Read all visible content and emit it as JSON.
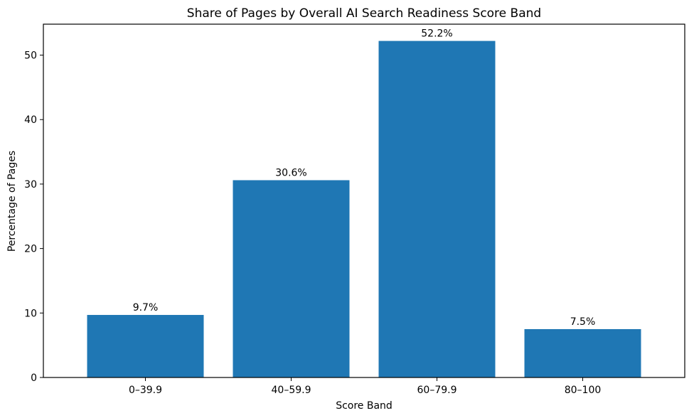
{
  "chart_data": {
    "type": "bar",
    "title": "Share of Pages by Overall AI Search Readiness Score Band",
    "xlabel": "Score Band",
    "ylabel": "Percentage of Pages",
    "categories": [
      "0–39.9",
      "40–59.9",
      "60–79.9",
      "80–100"
    ],
    "values": [
      9.7,
      30.6,
      52.2,
      7.5
    ],
    "value_labels": [
      "9.7%",
      "30.6%",
      "52.2%",
      "7.5%"
    ],
    "ylim": [
      0,
      54.8
    ],
    "yticks": [
      0,
      10,
      20,
      30,
      40,
      50
    ],
    "ytick_labels": [
      "0",
      "10",
      "20",
      "30",
      "40",
      "50"
    ],
    "bar_color": "#1f77b4",
    "grid": false,
    "legend": "none"
  }
}
